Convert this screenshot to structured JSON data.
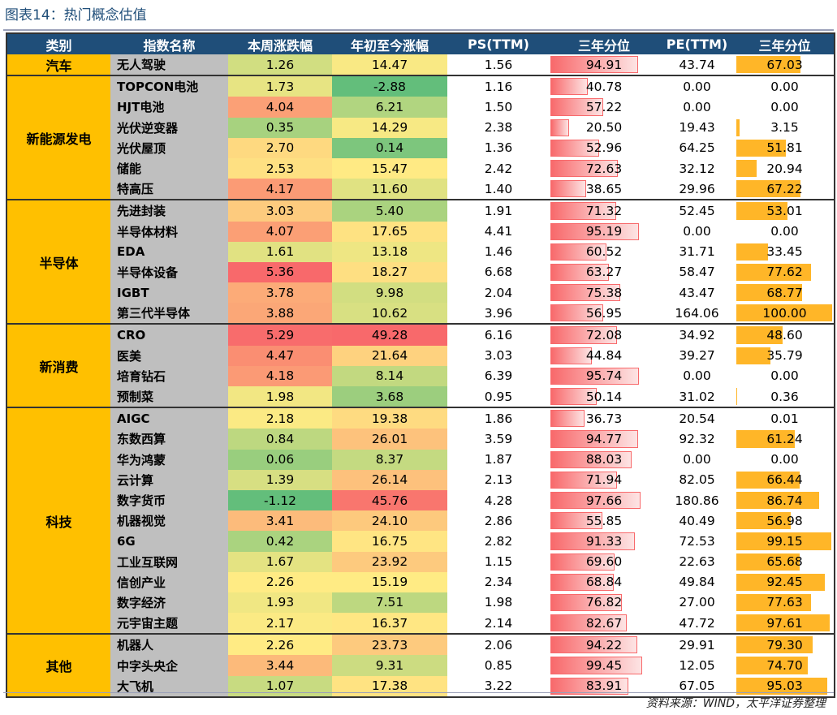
{
  "title": "图表14：热门概念估值",
  "source": "资料来源：WIND，太平洋证券整理",
  "headers": [
    "类别",
    "指数名称",
    "本周涨跌幅",
    "年初至今涨幅",
    "PS(TTM)",
    "三年分位",
    "PE(TTM)",
    "三年分位"
  ],
  "colors": {
    "header": "#1f4e79",
    "category": "#ffc000",
    "name": "#bfbfbf",
    "green": "#63be7b",
    "yellow": "#ffeb84",
    "red": "#f8696b",
    "pe_bar": "#ffb628"
  },
  "groups": [
    {
      "category": "汽车",
      "rows": [
        [
          "无人驾驶",
          "1.26",
          "14.47",
          "1.56",
          "94.91",
          "43.74",
          "67.03"
        ]
      ]
    },
    {
      "category": "新能源发电",
      "rows": [
        [
          "TOPCON电池",
          "1.73",
          "-2.88",
          "1.16",
          "40.78",
          "0.00",
          "0.00"
        ],
        [
          "HJT电池",
          "4.04",
          "6.21",
          "1.50",
          "57.22",
          "0.00",
          "0.00"
        ],
        [
          "光伏逆变器",
          "0.35",
          "14.29",
          "2.38",
          "20.50",
          "19.43",
          "3.15"
        ],
        [
          "光伏屋顶",
          "2.70",
          "0.14",
          "1.36",
          "52.96",
          "64.25",
          "51.81"
        ],
        [
          "储能",
          "2.53",
          "15.47",
          "2.42",
          "72.63",
          "32.12",
          "20.94"
        ],
        [
          "特高压",
          "4.17",
          "11.60",
          "1.40",
          "38.65",
          "29.96",
          "67.22"
        ]
      ]
    },
    {
      "category": "半导体",
      "rows": [
        [
          "先进封装",
          "3.03",
          "5.40",
          "1.91",
          "71.32",
          "52.45",
          "53.01"
        ],
        [
          "半导体材料",
          "4.07",
          "17.65",
          "4.41",
          "95.19",
          "0.00",
          "0.00"
        ],
        [
          "EDA",
          "1.61",
          "13.18",
          "1.46",
          "60.52",
          "31.71",
          "33.45"
        ],
        [
          "半导体设备",
          "5.36",
          "18.27",
          "6.68",
          "63.27",
          "58.47",
          "77.62"
        ],
        [
          "IGBT",
          "3.78",
          "9.98",
          "2.04",
          "75.38",
          "43.47",
          "68.77"
        ],
        [
          "第三代半导体",
          "3.88",
          "10.62",
          "3.96",
          "56.95",
          "164.06",
          "100.00"
        ]
      ]
    },
    {
      "category": "新消费",
      "rows": [
        [
          "CRO",
          "5.29",
          "49.28",
          "6.16",
          "72.08",
          "34.92",
          "48.60"
        ],
        [
          "医美",
          "4.47",
          "21.64",
          "3.03",
          "44.84",
          "39.27",
          "35.79"
        ],
        [
          "培育钻石",
          "4.18",
          "8.14",
          "6.39",
          "95.74",
          "0.00",
          "0.00"
        ],
        [
          "预制菜",
          "1.98",
          "3.68",
          "0.95",
          "50.14",
          "31.02",
          "0.36"
        ]
      ]
    },
    {
      "category": "科技",
      "rows": [
        [
          "AIGC",
          "2.18",
          "19.38",
          "1.86",
          "36.73",
          "20.54",
          "0.01"
        ],
        [
          "东数西算",
          "0.84",
          "26.01",
          "3.59",
          "94.77",
          "92.32",
          "61.24"
        ],
        [
          "华为鸿蒙",
          "0.06",
          "8.37",
          "1.87",
          "88.03",
          "0.00",
          "0.00"
        ],
        [
          "云计算",
          "1.39",
          "26.14",
          "2.13",
          "71.94",
          "82.05",
          "66.44"
        ],
        [
          "数字货币",
          "-1.12",
          "45.76",
          "4.28",
          "97.66",
          "180.86",
          "86.74"
        ],
        [
          "机器视觉",
          "3.41",
          "24.10",
          "2.86",
          "55.85",
          "40.49",
          "56.98"
        ],
        [
          "6G",
          "0.42",
          "16.75",
          "2.82",
          "91.33",
          "72.53",
          "99.15"
        ],
        [
          "工业互联网",
          "1.67",
          "23.92",
          "1.15",
          "69.60",
          "22.63",
          "65.68"
        ],
        [
          "信创产业",
          "2.26",
          "15.19",
          "2.34",
          "68.84",
          "49.84",
          "92.45"
        ],
        [
          "数字经济",
          "1.93",
          "7.51",
          "1.98",
          "76.82",
          "27.00",
          "77.63"
        ],
        [
          "元宇宙主题",
          "2.17",
          "16.37",
          "2.14",
          "82.67",
          "47.72",
          "97.61"
        ]
      ]
    },
    {
      "category": "其他",
      "rows": [
        [
          "机器人",
          "2.26",
          "23.73",
          "2.06",
          "94.22",
          "29.91",
          "79.30"
        ],
        [
          "中字头央企",
          "3.44",
          "9.31",
          "0.85",
          "99.45",
          "12.05",
          "74.70"
        ],
        [
          "大飞机",
          "1.07",
          "17.38",
          "3.22",
          "83.91",
          "67.05",
          "95.03"
        ]
      ]
    }
  ]
}
